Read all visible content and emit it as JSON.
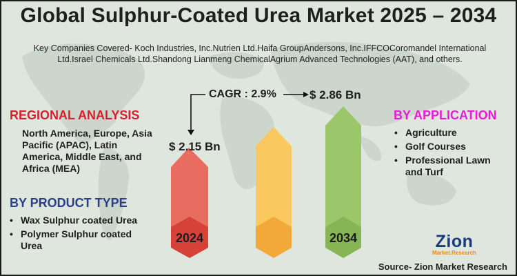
{
  "title": "Global Sulphur-Coated Urea Market 2025 – 2034",
  "companies_text": "Key Companies Covered- Koch Industries, Inc.Nutrien Ltd.Haifa GroupAndersons, Inc.IFFCOCoromandel International Ltd.Israel Chemicals Ltd.Shandong Lianmeng ChemicalAgrium Advanced Technologies (AAT), and others.",
  "regional": {
    "title": "REGIONAL ANALYSIS",
    "text": "North America, Europe, Asia Pacific (APAC), Latin America, Middle East, and Africa (MEA)"
  },
  "product_type": {
    "title": "BY PRODUCT TYPE",
    "items": [
      "Wax Sulphur coated Urea",
      "Polymer Sulphur coated Urea"
    ]
  },
  "application": {
    "title": "BY APPLICATION",
    "items": [
      "Agriculture",
      "Golf Courses",
      "Professional Lawn and Turf"
    ]
  },
  "chart_data": {
    "type": "bar",
    "categories": [
      "2024",
      "",
      "2034"
    ],
    "values_label": {
      "2024": "$ 2.15 Bn",
      "2034": "$ 2.86 Bn"
    },
    "values": [
      2.15,
      2.5,
      2.86
    ],
    "cagr": "CAGR : 2.9%",
    "unit": "USD Billion",
    "colors": [
      "#e0473e",
      "#f6b33d",
      "#93c05a"
    ]
  },
  "logo": {
    "main": "Zion",
    "sub": "Market.Research"
  },
  "source": "Source- Zion Market Research",
  "colors": {
    "background": "#dfe6de",
    "regional_title": "#d6202e",
    "product_title": "#2b3f86",
    "application_title": "#e81cd6"
  }
}
